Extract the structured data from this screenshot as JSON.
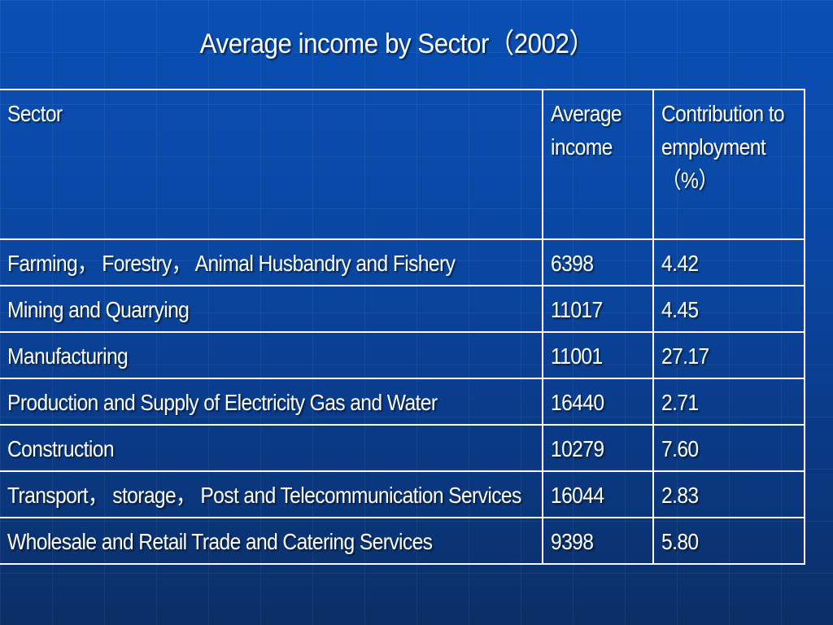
{
  "title": "Average income by Sector（2002）",
  "table": {
    "headers": {
      "sector": "Sector",
      "income": "Average income",
      "contribution": "Contribution to employment （%）"
    },
    "rows": [
      {
        "sector": "Farming， Forestry， Animal Husbandry and Fishery",
        "income": "6398",
        "contribution": "4.42"
      },
      {
        "sector": "Mining and Quarrying",
        "income": "11017",
        "contribution": "4.45"
      },
      {
        "sector": "Manufacturing",
        "income": "11001",
        "contribution": "27.17"
      },
      {
        "sector": "Production and Supply of Electricity Gas and Water",
        "income": "16440",
        "contribution": "2.71"
      },
      {
        "sector": "Construction",
        "income": "10279",
        "contribution": "7.60"
      },
      {
        "sector": "Transport， storage， Post and Telecommunication Services",
        "income": "16044",
        "contribution": "2.83"
      },
      {
        "sector": "Wholesale and Retail Trade and Catering Services",
        "income": "9398",
        "contribution": "5.80"
      }
    ]
  }
}
